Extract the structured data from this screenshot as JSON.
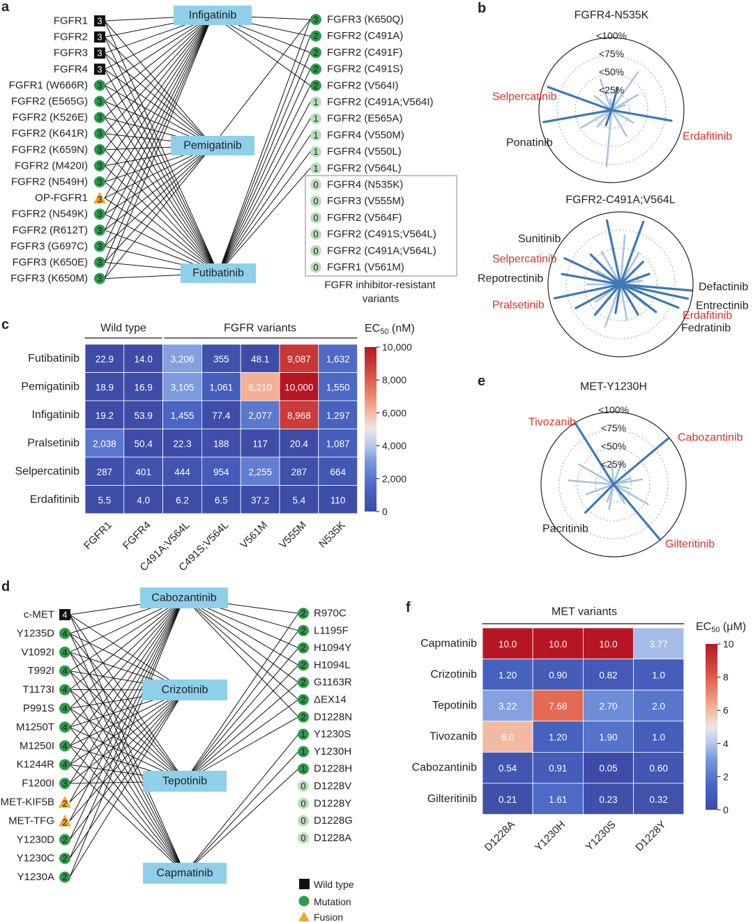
{
  "panel_letters": [
    "a",
    "b",
    "c",
    "d",
    "e",
    "f"
  ],
  "legend": {
    "wild_type": "Wild type",
    "mutation": "Mutation",
    "fusion": "Fusion"
  },
  "colors": {
    "drug_box": "#8ecfea",
    "wild_type": "#111111",
    "mutation_strong": "#2e9a4a",
    "mutation_weak": "#b8dfb4",
    "fusion": "#f2a82c",
    "spoke_strong": "#3f78b6",
    "spoke_weak": "#a9c3e0",
    "highlight_red": "#d6332c"
  },
  "panel_a": {
    "drugs": [
      "Infigatinib",
      "Pemigatinib",
      "Futibatinib"
    ],
    "left_nodes": [
      {
        "label": "FGFR1",
        "score": "3",
        "kind": "wild_type"
      },
      {
        "label": "FGFR2",
        "score": "3",
        "kind": "wild_type"
      },
      {
        "label": "FGFR3",
        "score": "3",
        "kind": "wild_type"
      },
      {
        "label": "FGFR4",
        "score": "3",
        "kind": "wild_type"
      },
      {
        "label": "FGFR1 (W666R)",
        "score": "3",
        "kind": "mutation"
      },
      {
        "label": "FGFR2 (E565G)",
        "score": "3",
        "kind": "mutation"
      },
      {
        "label": "FGFR2 (K526E)",
        "score": "3",
        "kind": "mutation"
      },
      {
        "label": "FGFR2 (K641R)",
        "score": "3",
        "kind": "mutation"
      },
      {
        "label": "FGFR2 (K659N)",
        "score": "3",
        "kind": "mutation"
      },
      {
        "label": "FGFR2 (M420I)",
        "score": "3",
        "kind": "mutation"
      },
      {
        "label": "FGFR2 (N549H)",
        "score": "3",
        "kind": "mutation"
      },
      {
        "label": "OP-FGFR1",
        "score": "3",
        "kind": "fusion"
      },
      {
        "label": "FGFR2 (N549K)",
        "score": "3",
        "kind": "mutation"
      },
      {
        "label": "FGFR2 (R612T)",
        "score": "3",
        "kind": "mutation"
      },
      {
        "label": "FGFR3 (G697C)",
        "score": "3",
        "kind": "mutation"
      },
      {
        "label": "FGFR3 (K650E)",
        "score": "3",
        "kind": "mutation"
      },
      {
        "label": "FGFR3 (K650M)",
        "score": "3",
        "kind": "mutation"
      }
    ],
    "right_nodes": [
      {
        "label": "FGFR3 (K650Q)",
        "score": "3",
        "kind": "strong"
      },
      {
        "label": "FGFR2 (C491A)",
        "score": "2",
        "kind": "strong"
      },
      {
        "label": "FGFR2 (C491F)",
        "score": "2",
        "kind": "strong"
      },
      {
        "label": "FGFR2 (C491S)",
        "score": "2",
        "kind": "strong"
      },
      {
        "label": "FGFR2 (V564I)",
        "score": "2",
        "kind": "strong"
      },
      {
        "label": "FGFR2 (C491A;V564I)",
        "score": "1",
        "kind": "weak"
      },
      {
        "label": "FGFR2 (E565A)",
        "score": "1",
        "kind": "weak"
      },
      {
        "label": "FGFR4 (V550M)",
        "score": "1",
        "kind": "weak"
      },
      {
        "label": "FGFR4 (V550L)",
        "score": "1",
        "kind": "weak"
      },
      {
        "label": "FGFR2 (V564L)",
        "score": "1",
        "kind": "weak"
      },
      {
        "label": "FGFR4 (N535K)",
        "score": "0",
        "kind": "weak"
      },
      {
        "label": "FGFR3 (V555M)",
        "score": "0",
        "kind": "weak"
      },
      {
        "label": "FGFR2 (V564F)",
        "score": "0",
        "kind": "weak"
      },
      {
        "label": "FGFR2 (C491S;V564L)",
        "score": "0",
        "kind": "weak"
      },
      {
        "label": "FGFR2 (C491A;V564L)",
        "score": "0",
        "kind": "weak"
      },
      {
        "label": "FGFR1 (V561M)",
        "score": "0",
        "kind": "weak"
      }
    ],
    "resistant_caption_1": "FGFR inhibitor-resistant",
    "resistant_caption_2": "variants"
  },
  "panel_d": {
    "drugs": [
      "Cabozantinib",
      "Crizotinib",
      "Tepotinib",
      "Capmatinib"
    ],
    "left_nodes": [
      {
        "label": "c-MET",
        "score": "4",
        "kind": "wild_type"
      },
      {
        "label": "Y1235D",
        "score": "4",
        "kind": "mutation"
      },
      {
        "label": "V1092I",
        "score": "4",
        "kind": "mutation"
      },
      {
        "label": "T992I",
        "score": "4",
        "kind": "mutation"
      },
      {
        "label": "T1173I",
        "score": "4",
        "kind": "mutation"
      },
      {
        "label": "P991S",
        "score": "4",
        "kind": "mutation"
      },
      {
        "label": "M1250T",
        "score": "4",
        "kind": "mutation"
      },
      {
        "label": "M1250I",
        "score": "4",
        "kind": "mutation"
      },
      {
        "label": "K1244R",
        "score": "4",
        "kind": "mutation"
      },
      {
        "label": "F1200I",
        "score": "3",
        "kind": "mutation"
      },
      {
        "label": "MET-KIF5B",
        "score": "2",
        "kind": "fusion"
      },
      {
        "label": "MET-TFG",
        "score": "2",
        "kind": "fusion"
      },
      {
        "label": "Y1230D",
        "score": "2",
        "kind": "mutation"
      },
      {
        "label": "Y1230C",
        "score": "2",
        "kind": "mutation"
      },
      {
        "label": "Y1230A",
        "score": "2",
        "kind": "mutation"
      }
    ],
    "right_nodes": [
      {
        "label": "R970C",
        "score": "2",
        "kind": "mutation"
      },
      {
        "label": "L1195F",
        "score": "2",
        "kind": "mutation"
      },
      {
        "label": "H1094Y",
        "score": "2",
        "kind": "mutation"
      },
      {
        "label": "H1094L",
        "score": "2",
        "kind": "mutation"
      },
      {
        "label": "G1163R",
        "score": "2",
        "kind": "mutation"
      },
      {
        "label": "ΔEX14",
        "score": "2",
        "kind": "mutation"
      },
      {
        "label": "D1228N",
        "score": "2",
        "kind": "mutation"
      },
      {
        "label": "Y1230S",
        "score": "1",
        "kind": "mutation"
      },
      {
        "label": "Y1230H",
        "score": "1",
        "kind": "mutation"
      },
      {
        "label": "D1228H",
        "score": "1",
        "kind": "mutation"
      },
      {
        "label": "D1228V",
        "score": "0",
        "kind": "mutation"
      },
      {
        "label": "D1228Y",
        "score": "0",
        "kind": "mutation"
      },
      {
        "label": "D1228G",
        "score": "0",
        "kind": "mutation"
      },
      {
        "label": "D1228A",
        "score": "0",
        "kind": "mutation"
      }
    ]
  },
  "chart_data": [
    {
      "id": "c",
      "type": "heatmap",
      "group_headers": [
        "Wild type",
        "FGFR variants"
      ],
      "rows": [
        "Futibatinib",
        "Pemigatinib",
        "Infigatinib",
        "Pralsetinib",
        "Selpercatinib",
        "Erdafitinib"
      ],
      "columns": [
        "FGFR1",
        "FGFR4",
        "C491A;V564L",
        "C491S;V564L",
        "V561M",
        "V555M",
        "N535K"
      ],
      "values": [
        [
          22.9,
          14.0,
          3206,
          355,
          48.1,
          9087,
          1632
        ],
        [
          18.9,
          16.9,
          3105,
          1061,
          6210,
          10000,
          1550
        ],
        [
          19.2,
          53.9,
          1455,
          77.4,
          2077,
          8968,
          1297
        ],
        [
          2038,
          50.4,
          22.3,
          188,
          117,
          20.4,
          1087
        ],
        [
          287,
          401,
          444,
          954,
          2255,
          287,
          664
        ],
        [
          5.5,
          4.0,
          6.2,
          6.5,
          37.2,
          5.4,
          110
        ]
      ],
      "value_labels": [
        [
          "22.9",
          "14.0",
          "3,206",
          "355",
          "48.1",
          "9,087",
          "1,632"
        ],
        [
          "18.9",
          "16.9",
          "3,105",
          "1,061",
          "6,210",
          "10,000",
          "1,550"
        ],
        [
          "19.2",
          "53.9",
          "1,455",
          "77.4",
          "2,077",
          "8,968",
          "1,297"
        ],
        [
          "2,038",
          "50.4",
          "22.3",
          "188",
          "117",
          "20.4",
          "1,087"
        ],
        [
          "287",
          "401",
          "444",
          "954",
          "2,255",
          "287",
          "664"
        ],
        [
          "5.5",
          "4.0",
          "6.2",
          "6.5",
          "37.2",
          "5.4",
          "110"
        ]
      ],
      "colorbar_title": "EC",
      "colorbar_sub": "50",
      "colorbar_unit": " (nM)",
      "range": [
        0,
        10000
      ],
      "ticks": [
        "10,000",
        "8,000",
        "6,000",
        "4,000",
        "2,000",
        "0"
      ]
    },
    {
      "id": "f",
      "type": "heatmap",
      "group_headers": [
        "MET variants"
      ],
      "rows": [
        "Capmatinib",
        "Crizotinib",
        "Tepotinib",
        "Tivozanib",
        "Cabozantinib",
        "Gilteritinib"
      ],
      "columns": [
        "D1228A",
        "Y1230H",
        "Y1230S",
        "D1228Y"
      ],
      "values": [
        [
          10.0,
          10.0,
          10.0,
          3.77
        ],
        [
          1.2,
          0.9,
          0.82,
          1.0
        ],
        [
          3.22,
          7.68,
          2.7,
          2.0
        ],
        [
          6.0,
          1.2,
          1.9,
          1.0
        ],
        [
          0.54,
          0.91,
          0.05,
          0.6
        ],
        [
          0.21,
          1.61,
          0.23,
          0.32
        ]
      ],
      "value_labels": [
        [
          "10.0",
          "10.0",
          "10.0",
          "3.77"
        ],
        [
          "1.20",
          "0.90",
          "0.82",
          "1.0"
        ],
        [
          "3.22",
          "7.68",
          "2.70",
          "2.0"
        ],
        [
          "6.0",
          "1.20",
          "1.90",
          "1.0"
        ],
        [
          "0.54",
          "0.91",
          "0.05",
          "0.60"
        ],
        [
          "0.21",
          "1.61",
          "0.23",
          "0.32"
        ]
      ],
      "colorbar_title": "EC",
      "colorbar_sub": "50",
      "colorbar_unit": " (μM)",
      "range": [
        0,
        10
      ],
      "ticks": [
        "10",
        "8",
        "6",
        "4",
        "2",
        "0"
      ]
    },
    {
      "id": "b1",
      "type": "radar",
      "title": "FGFR4-N535K",
      "rings": [
        "<100%",
        "<75%",
        "<50%",
        "<25%"
      ],
      "labels": [
        {
          "text": "Selpercatinib",
          "red": true
        },
        {
          "text": "Erdafitinib",
          "red": true
        },
        {
          "text": "Ponatinib",
          "red": false
        }
      ]
    },
    {
      "id": "b2",
      "type": "radar",
      "title": "FGFR2-C491A;V564L",
      "labels": [
        {
          "text": "Sunitinib",
          "red": false
        },
        {
          "text": "Selpercatinib",
          "red": true
        },
        {
          "text": "Repotrectinib",
          "red": false
        },
        {
          "text": "Pralsetinib",
          "red": true
        },
        {
          "text": "Defactinib",
          "red": false
        },
        {
          "text": "Entrectinib",
          "red": false
        },
        {
          "text": "Erdafitinib",
          "red": true
        },
        {
          "text": "Fedratinib",
          "red": false
        }
      ]
    },
    {
      "id": "e",
      "type": "radar",
      "title": "MET-Y1230H",
      "rings": [
        "<100%",
        "<75%",
        "<50%",
        "<25%"
      ],
      "labels": [
        {
          "text": "Tivozanib",
          "red": true
        },
        {
          "text": "Cabozantinib",
          "red": true
        },
        {
          "text": "Pacritinib",
          "red": false
        },
        {
          "text": "Gilteritinib",
          "red": true
        }
      ]
    }
  ]
}
